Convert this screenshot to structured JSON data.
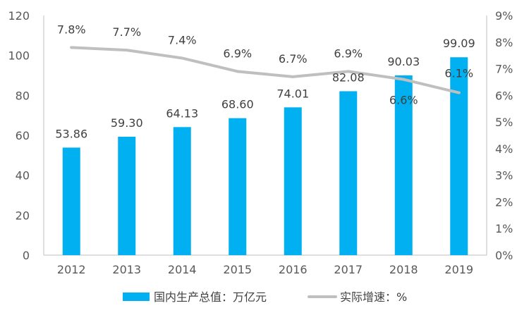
{
  "chart_data": {
    "type": "bar+line",
    "categories": [
      "2012",
      "2013",
      "2014",
      "2015",
      "2016",
      "2017",
      "2018",
      "2019"
    ],
    "series": [
      {
        "name": "国内生产总值：万亿元",
        "type": "bar",
        "axis": "left",
        "color": "#00B0F0",
        "values": [
          53.86,
          59.3,
          64.13,
          68.6,
          74.01,
          82.08,
          90.03,
          99.09
        ],
        "labels": [
          "53.86",
          "59.30",
          "64.13",
          "68.60",
          "74.01",
          "82.08",
          "90.03",
          "99.09"
        ]
      },
      {
        "name": "实际增速：%",
        "type": "line",
        "axis": "right",
        "color": "#BFBFBF",
        "values": [
          7.8,
          7.7,
          7.4,
          6.9,
          6.7,
          6.9,
          6.6,
          6.1
        ],
        "labels": [
          "7.8%",
          "7.7%",
          "7.4%",
          "6.9%",
          "6.7%",
          "6.9%",
          "6.6%",
          "6.1%"
        ]
      }
    ],
    "y_left": {
      "range": [
        0,
        120
      ],
      "ticks": [
        "0",
        "20",
        "40",
        "60",
        "80",
        "100",
        "120"
      ]
    },
    "y_right": {
      "range": [
        0,
        9
      ],
      "ticks": [
        "0%",
        "1%",
        "2%",
        "3%",
        "4%",
        "5%",
        "6%",
        "7%",
        "8%",
        "9%"
      ]
    },
    "grid": false,
    "legend": "bottom-center"
  }
}
